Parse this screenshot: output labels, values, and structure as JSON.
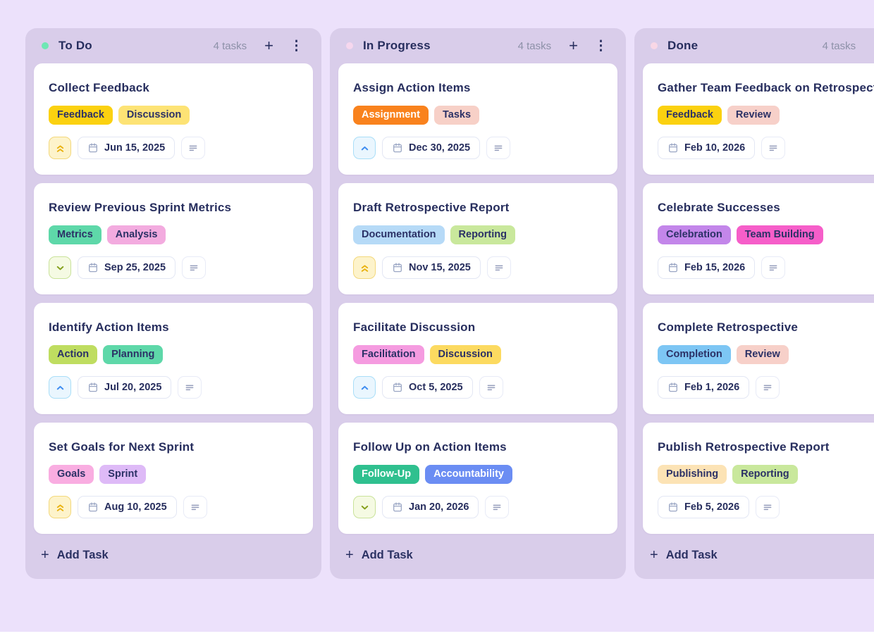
{
  "icons": {
    "plus": "+",
    "kebab": "⋮"
  },
  "board": {
    "add_task_label": "Add Task",
    "priorities": {
      "urgent": {
        "icon": "double-chevron-up-icon",
        "bg": "#fdf3cb",
        "border": "#f3d87c",
        "glyph": "#e9b10e"
      },
      "high": {
        "icon": "chevron-up-icon",
        "bg": "#eaf6fe",
        "border": "#a9def8",
        "glyph": "#3f8df0"
      },
      "low": {
        "icon": "chevron-down-icon",
        "bg": "#f5fae3",
        "border": "#c9e29a",
        "glyph": "#85a01d"
      }
    },
    "columns": [
      {
        "title": "To Do",
        "count_label": "4 tasks",
        "dot_color": "#6ee7b4",
        "tasks": [
          {
            "title": "Collect Feedback",
            "priority": "urgent",
            "date": "Jun 15, 2025",
            "tags": [
              {
                "label": "Feedback",
                "bg": "#fbd110"
              },
              {
                "label": "Discussion",
                "bg": "#fde375"
              }
            ]
          },
          {
            "title": "Review Previous Sprint Metrics",
            "priority": "low",
            "date": "Sep 25, 2025",
            "tags": [
              {
                "label": "Metrics",
                "bg": "#5ed8a9"
              },
              {
                "label": "Analysis",
                "bg": "#f3abdf"
              }
            ]
          },
          {
            "title": "Identify Action Items",
            "priority": "high",
            "date": "Jul 20, 2025",
            "tags": [
              {
                "label": "Action",
                "bg": "#bfdd60"
              },
              {
                "label": "Planning",
                "bg": "#5ed8a9"
              }
            ]
          },
          {
            "title": "Set Goals for Next Sprint",
            "priority": "urgent",
            "date": "Aug 10, 2025",
            "tags": [
              {
                "label": "Goals",
                "bg": "#f9ade1"
              },
              {
                "label": "Sprint",
                "bg": "#debaf7"
              }
            ]
          }
        ]
      },
      {
        "title": "In Progress",
        "count_label": "4 tasks",
        "dot_color": "#f6d7ee",
        "tasks": [
          {
            "title": "Assign Action Items",
            "priority": "high",
            "date": "Dec 30, 2025",
            "tags": [
              {
                "label": "Assignment",
                "bg": "#f9821d",
                "fg": "#ffffff"
              },
              {
                "label": "Tasks",
                "bg": "#f7d0c7"
              }
            ]
          },
          {
            "title": "Draft Retrospective Report",
            "priority": "urgent",
            "date": "Nov 15, 2025",
            "tags": [
              {
                "label": "Documentation",
                "bg": "#b6daf7"
              },
              {
                "label": "Reporting",
                "bg": "#c9e89c"
              }
            ]
          },
          {
            "title": "Facilitate Discussion",
            "priority": "high",
            "date": "Oct 5, 2025",
            "tags": [
              {
                "label": "Facilitation",
                "bg": "#f59be0"
              },
              {
                "label": "Discussion",
                "bg": "#fcda60"
              }
            ]
          },
          {
            "title": "Follow Up on Action Items",
            "priority": "low",
            "date": "Jan 20, 2026",
            "tags": [
              {
                "label": "Follow-Up",
                "bg": "#2fc08f",
                "fg": "#ffffff"
              },
              {
                "label": "Accountability",
                "bg": "#6b8df3",
                "fg": "#ffffff"
              }
            ]
          }
        ]
      },
      {
        "title": "Done",
        "count_label": "4 tasks",
        "dot_color": "#f8d7e6",
        "tasks": [
          {
            "title": "Gather Team Feedback on Retrospective",
            "date": "Feb 10, 2026",
            "tags": [
              {
                "label": "Feedback",
                "bg": "#fbd110"
              },
              {
                "label": "Review",
                "bg": "#f7d0c9"
              }
            ]
          },
          {
            "title": "Celebrate Successes",
            "date": "Feb 15, 2026",
            "tags": [
              {
                "label": "Celebration",
                "bg": "#c386ea"
              },
              {
                "label": "Team Building",
                "bg": "#f65ec9"
              }
            ]
          },
          {
            "title": "Complete Retrospective",
            "date": "Feb 1, 2026",
            "tags": [
              {
                "label": "Completion",
                "bg": "#7dc6f4"
              },
              {
                "label": "Review",
                "bg": "#f7d0c9"
              }
            ]
          },
          {
            "title": "Publish Retrospective Report",
            "date": "Feb 5, 2026",
            "tags": [
              {
                "label": "Publishing",
                "bg": "#fce3b5"
              },
              {
                "label": "Reporting",
                "bg": "#c9e89c"
              }
            ]
          }
        ]
      }
    ]
  }
}
